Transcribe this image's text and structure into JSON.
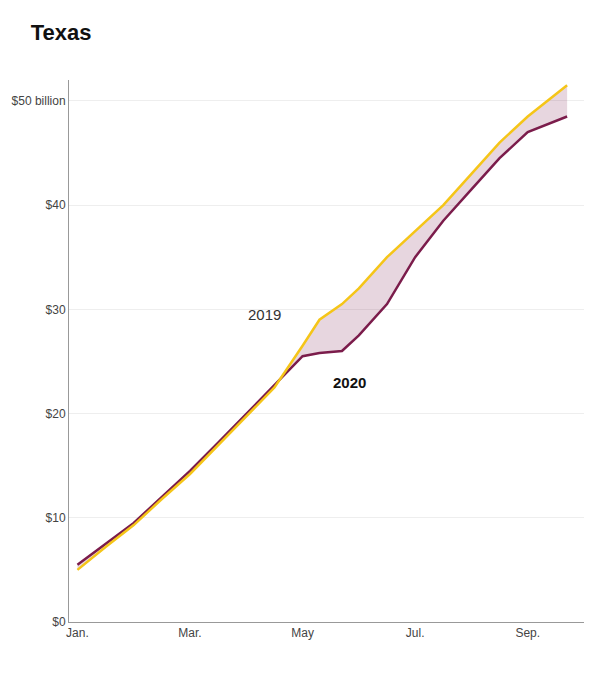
{
  "chart_data": {
    "type": "line",
    "title": "Texas",
    "series": [
      {
        "name": "2019",
        "color": "#F5C518",
        "x": [
          0,
          0.5,
          1,
          1.5,
          2,
          2.5,
          3,
          3.5,
          4,
          4.3,
          4.7,
          5,
          5.5,
          6,
          6.5,
          7,
          7.5,
          8,
          8.7
        ],
        "values": [
          5.0,
          7.2,
          9.3,
          11.8,
          14.2,
          17.0,
          19.8,
          22.5,
          26.5,
          29.0,
          30.5,
          32.0,
          35.0,
          37.5,
          40.0,
          43.0,
          46.0,
          48.5,
          51.5
        ]
      },
      {
        "name": "2020",
        "color": "#7B1C4B",
        "x": [
          0,
          0.5,
          1,
          1.5,
          2,
          2.5,
          3,
          3.5,
          4,
          4.3,
          4.7,
          5,
          5.5,
          6,
          6.5,
          7,
          7.5,
          8,
          8.7
        ],
        "values": [
          5.5,
          7.5,
          9.5,
          12.0,
          14.5,
          17.2,
          20.0,
          22.7,
          25.5,
          25.8,
          26.0,
          27.5,
          30.5,
          35.0,
          38.5,
          41.5,
          44.5,
          47.0,
          48.5
        ]
      }
    ],
    "xlim": [
      -0.15,
      9.0
    ],
    "xticks": [
      {
        "value": 0,
        "label": "Jan."
      },
      {
        "value": 2,
        "label": "Mar."
      },
      {
        "value": 4,
        "label": "May"
      },
      {
        "value": 6,
        "label": "Jul."
      },
      {
        "value": 8,
        "label": "Sep."
      }
    ],
    "ylim": [
      0,
      52
    ],
    "yticks": [
      {
        "value": 0,
        "label": "$0"
      },
      {
        "value": 10,
        "label": "$10"
      },
      {
        "value": 20,
        "label": "$20"
      },
      {
        "value": 30,
        "label": "$30"
      },
      {
        "value": 40,
        "label": "$40"
      },
      {
        "value": 50,
        "label": "$50 billion"
      }
    ],
    "annotations": [
      {
        "text": "2019",
        "x": 3.0,
        "y": 28.5
      },
      {
        "text": "2020",
        "x": 4.5,
        "y": 24.0
      }
    ],
    "grid": true
  }
}
